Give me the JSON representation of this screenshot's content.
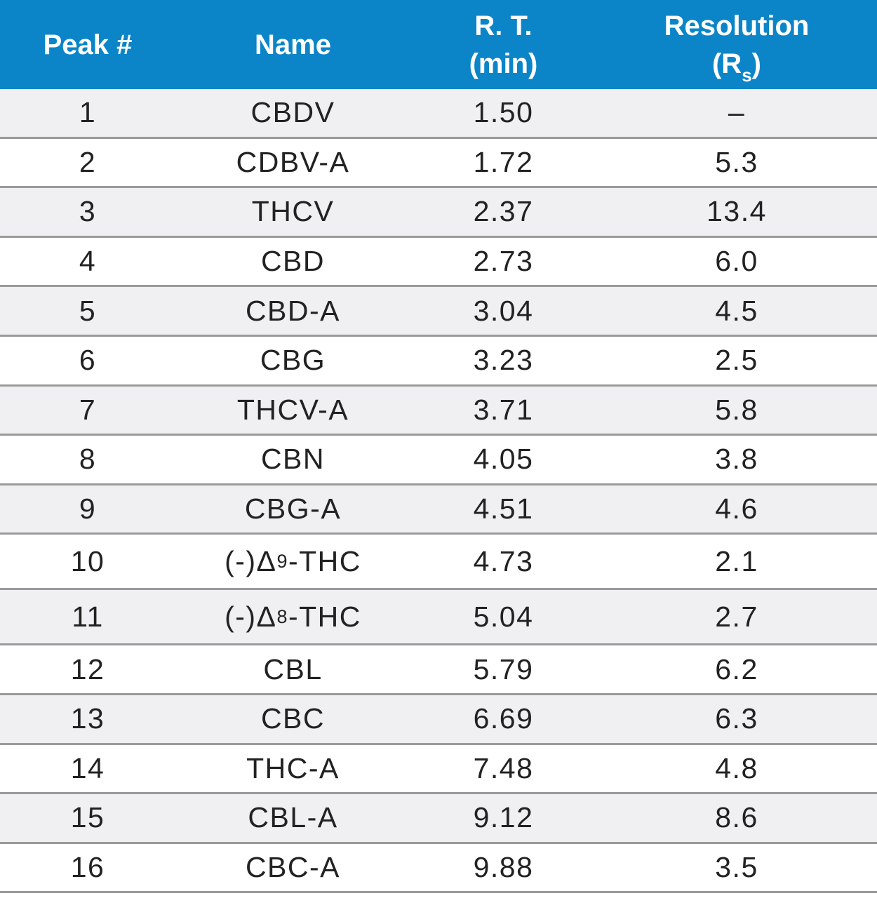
{
  "table": {
    "headers": {
      "peak": "Peak #",
      "name": "Name",
      "rt_line1": "R. T.",
      "rt_line2": "(min)",
      "res_line1": "Resolution",
      "res_line2_prefix": "(R",
      "res_line2_sub": "s",
      "res_line2_suffix": ")"
    },
    "rows": [
      {
        "peak": "1",
        "name": "CBDV",
        "rt": "1.50",
        "res": "–"
      },
      {
        "peak": "2",
        "name": "CDBV-A",
        "rt": "1.72",
        "res": "5.3"
      },
      {
        "peak": "3",
        "name": "THCV",
        "rt": "2.37",
        "res": "13.4"
      },
      {
        "peak": "4",
        "name": "CBD",
        "rt": "2.73",
        "res": "6.0"
      },
      {
        "peak": "5",
        "name": "CBD-A",
        "rt": "3.04",
        "res": "4.5"
      },
      {
        "peak": "6",
        "name": "CBG",
        "rt": "3.23",
        "res": "2.5"
      },
      {
        "peak": "7",
        "name": "THCV-A",
        "rt": "3.71",
        "res": "5.8"
      },
      {
        "peak": "8",
        "name": "CBN",
        "rt": "4.05",
        "res": "3.8"
      },
      {
        "peak": "9",
        "name": "CBG-A",
        "rt": "4.51",
        "res": "4.6"
      },
      {
        "peak": "10",
        "name_prefix": "(-)Δ",
        "name_sup": "9",
        "name_suffix": "-THC",
        "rt": "4.73",
        "res": "2.1"
      },
      {
        "peak": "11",
        "name_prefix": "(-)Δ",
        "name_sup": "8",
        "name_suffix": "-THC",
        "rt": "5.04",
        "res": "2.7"
      },
      {
        "peak": "12",
        "name": "CBL",
        "rt": "5.79",
        "res": "6.2"
      },
      {
        "peak": "13",
        "name": "CBC",
        "rt": "6.69",
        "res": "6.3"
      },
      {
        "peak": "14",
        "name": "THC-A",
        "rt": "7.48",
        "res": "4.8"
      },
      {
        "peak": "15",
        "name": "CBL-A",
        "rt": "9.12",
        "res": "8.6"
      },
      {
        "peak": "16",
        "name": "CBC-A",
        "rt": "9.88",
        "res": "3.5"
      }
    ]
  },
  "colors": {
    "header_bg": "#0b85c8",
    "header_text": "#ffffff",
    "alt_row_bg": "#f0f0f3",
    "divider": "#9a9a9a"
  }
}
